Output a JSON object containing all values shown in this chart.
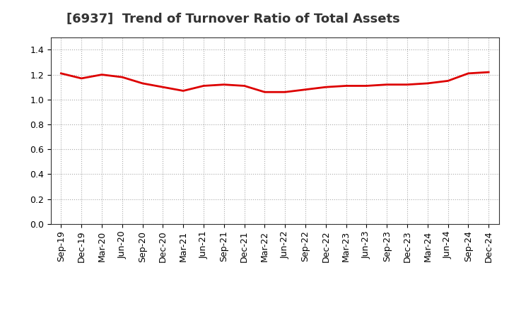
{
  "title": "[6937]  Trend of Turnover Ratio of Total Assets",
  "x_labels": [
    "Sep-19",
    "Dec-19",
    "Mar-20",
    "Jun-20",
    "Sep-20",
    "Dec-20",
    "Mar-21",
    "Jun-21",
    "Sep-21",
    "Dec-21",
    "Mar-22",
    "Jun-22",
    "Sep-22",
    "Dec-22",
    "Mar-23",
    "Jun-23",
    "Sep-23",
    "Dec-23",
    "Mar-24",
    "Jun-24",
    "Sep-24",
    "Dec-24"
  ],
  "values": [
    1.21,
    1.17,
    1.2,
    1.18,
    1.13,
    1.1,
    1.07,
    1.11,
    1.12,
    1.11,
    1.06,
    1.06,
    1.08,
    1.1,
    1.11,
    1.11,
    1.12,
    1.12,
    1.13,
    1.15,
    1.21,
    1.22
  ],
  "line_color": "#dd0000",
  "line_width": 2.0,
  "ylim": [
    0.0,
    1.5
  ],
  "yticks": [
    0.0,
    0.2,
    0.4,
    0.6,
    0.8,
    1.0,
    1.2,
    1.4
  ],
  "grid_color": "#aaaaaa",
  "grid_style": "dotted",
  "background_color": "#ffffff",
  "title_fontsize": 13,
  "tick_fontsize": 9
}
